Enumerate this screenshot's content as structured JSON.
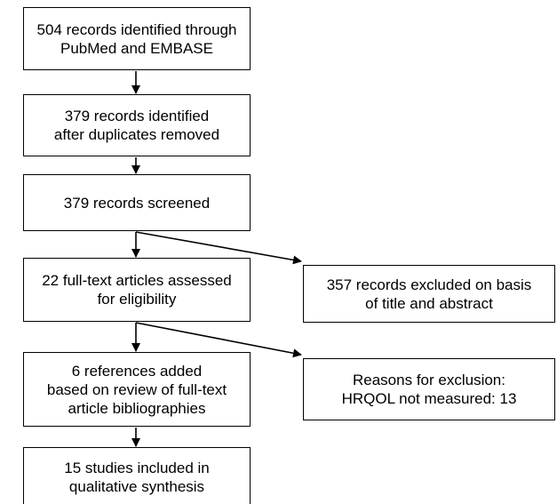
{
  "boxes": {
    "identified": [
      "504 records identified through",
      "PubMed and EMBASE"
    ],
    "after_duplicates": [
      "379 records identified",
      "after duplicates removed"
    ],
    "screened": [
      "379 records screened"
    ],
    "full_text": [
      "22 full-text articles assessed",
      "for eligibility"
    ],
    "references_added": [
      "6 references added",
      "based on review of full-text",
      "article bibliographies"
    ],
    "included": [
      "15 studies included in",
      "qualitative synthesis"
    ],
    "excluded_title": [
      "357 records excluded on basis",
      "of title and abstract"
    ],
    "exclusion_reasons": [
      "Reasons for exclusion:",
      "HRQOL not measured: 13"
    ]
  }
}
